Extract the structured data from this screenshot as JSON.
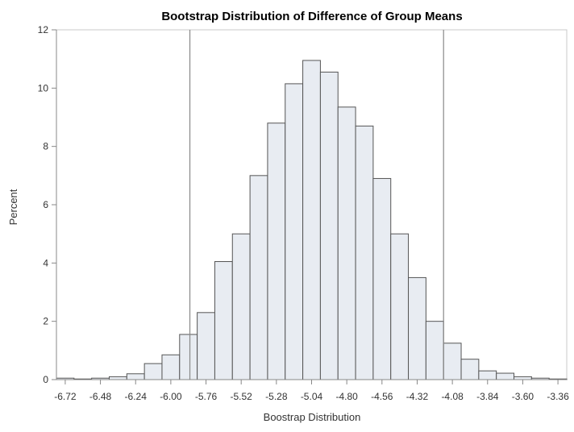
{
  "chart_data": {
    "type": "bar",
    "title": "Bootstrap Distribution of Difference of Group Means",
    "xlabel": "Boostrap Distribution",
    "ylabel": "Percent",
    "bin_width": 0.12,
    "x_ticks": [
      -6.72,
      -6.48,
      -6.24,
      -6.0,
      -5.76,
      -5.52,
      -5.28,
      -5.04,
      -4.8,
      -4.56,
      -4.32,
      -4.08,
      -3.84,
      -3.6,
      -3.36
    ],
    "x_tick_labels": [
      "-6.72",
      "-6.48",
      "-6.24",
      "-6.00",
      "-5.76",
      "-5.52",
      "-5.28",
      "-5.04",
      "-4.80",
      "-4.56",
      "-4.32",
      "-4.08",
      "-3.84",
      "-3.60",
      "-3.36"
    ],
    "xlim": [
      -6.78,
      -3.3
    ],
    "ylim": [
      0,
      12
    ],
    "y_ticks": [
      0,
      2,
      4,
      6,
      8,
      10,
      12
    ],
    "bins": [
      {
        "x": -6.72,
        "value": 0.05
      },
      {
        "x": -6.6,
        "value": 0.0
      },
      {
        "x": -6.48,
        "value": 0.05
      },
      {
        "x": -6.36,
        "value": 0.1
      },
      {
        "x": -6.24,
        "value": 0.2
      },
      {
        "x": -6.12,
        "value": 0.55
      },
      {
        "x": -6.0,
        "value": 0.85
      },
      {
        "x": -5.88,
        "value": 1.55
      },
      {
        "x": -5.76,
        "value": 2.3
      },
      {
        "x": -5.64,
        "value": 4.05
      },
      {
        "x": -5.52,
        "value": 5.0
      },
      {
        "x": -5.4,
        "value": 7.0
      },
      {
        "x": -5.28,
        "value": 8.8
      },
      {
        "x": -5.16,
        "value": 10.15
      },
      {
        "x": -5.04,
        "value": 10.95
      },
      {
        "x": -4.92,
        "value": 10.55
      },
      {
        "x": -4.8,
        "value": 9.35
      },
      {
        "x": -4.68,
        "value": 8.7
      },
      {
        "x": -4.56,
        "value": 6.9
      },
      {
        "x": -4.44,
        "value": 5.0
      },
      {
        "x": -4.32,
        "value": 3.5
      },
      {
        "x": -4.2,
        "value": 2.0
      },
      {
        "x": -4.08,
        "value": 1.25
      },
      {
        "x": -3.96,
        "value": 0.7
      },
      {
        "x": -3.84,
        "value": 0.3
      },
      {
        "x": -3.72,
        "value": 0.22
      },
      {
        "x": -3.6,
        "value": 0.1
      },
      {
        "x": -3.48,
        "value": 0.05
      },
      {
        "x": -3.36,
        "value": 0.02
      }
    ],
    "reference_lines": [
      -5.87,
      -4.14
    ],
    "grid": false,
    "colors": {
      "bar_fill": "#e8ecf2",
      "bar_stroke": "#555555",
      "ref_line": "#888888",
      "axis": "#888888"
    }
  }
}
